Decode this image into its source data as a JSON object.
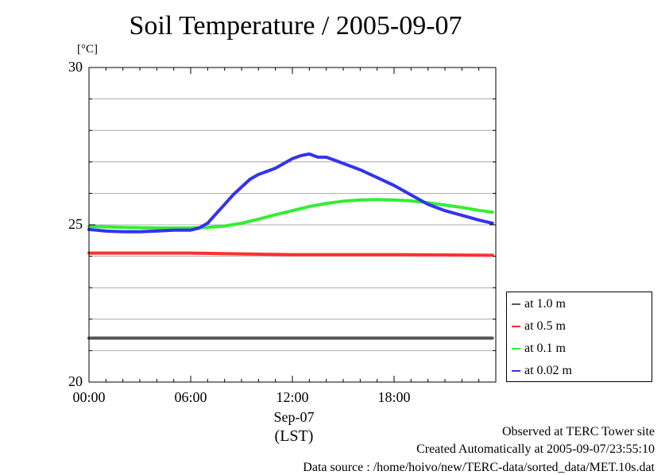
{
  "chart_data": {
    "type": "line",
    "title": "Soil Temperature / 2005-09-07",
    "ylabel": "[°C]",
    "ylim": [
      20,
      30
    ],
    "yticks": [
      20,
      25,
      30
    ],
    "xlim": [
      0,
      24
    ],
    "xticks": [
      0,
      6,
      12,
      18
    ],
    "xtick_labels": [
      "00:00",
      "06:00",
      "12:00",
      "18:00"
    ],
    "x_sublabel": "Sep-07",
    "x_unit": "(LST)",
    "grid": true,
    "legend_position": "right",
    "series": [
      {
        "name": "at 1.0 m",
        "color": "#555555",
        "x": [
          0,
          6,
          12,
          18,
          23.8
        ],
        "y": [
          21.4,
          21.4,
          21.4,
          21.4,
          21.4
        ]
      },
      {
        "name": "at 0.5 m",
        "color": "#ff3030",
        "x": [
          0,
          6,
          12,
          18,
          23.8
        ],
        "y": [
          24.1,
          24.1,
          24.05,
          24.05,
          24.03
        ]
      },
      {
        "name": "at 0.1 m",
        "color": "#33ee33",
        "x": [
          0,
          2,
          4,
          6,
          7,
          8,
          9,
          10,
          11,
          12,
          13,
          14,
          15,
          16,
          17,
          18,
          19,
          20,
          21,
          22,
          23,
          23.8
        ],
        "y": [
          24.95,
          24.92,
          24.9,
          24.9,
          24.92,
          24.96,
          25.05,
          25.18,
          25.32,
          25.45,
          25.58,
          25.68,
          25.75,
          25.79,
          25.8,
          25.79,
          25.76,
          25.7,
          25.63,
          25.55,
          25.46,
          25.4
        ]
      },
      {
        "name": "at 0.02 m",
        "color": "#3333ee",
        "x": [
          0,
          1,
          2,
          3,
          4,
          5,
          6,
          6.5,
          7,
          7.5,
          8,
          8.5,
          9,
          9.5,
          10,
          10.5,
          11,
          11.5,
          12,
          12.5,
          13,
          13.5,
          14,
          14.5,
          15,
          16,
          17,
          18,
          19,
          20,
          21,
          22,
          23,
          23.8
        ],
        "y": [
          24.85,
          24.8,
          24.78,
          24.78,
          24.8,
          24.83,
          24.83,
          24.9,
          25.05,
          25.35,
          25.65,
          25.95,
          26.2,
          26.45,
          26.6,
          26.7,
          26.8,
          26.95,
          27.1,
          27.2,
          27.25,
          27.15,
          27.15,
          27.05,
          26.95,
          26.75,
          26.5,
          26.25,
          25.95,
          25.65,
          25.45,
          25.3,
          25.15,
          25.05
        ]
      }
    ]
  },
  "footer": {
    "line1": "Observed at TERC Tower site",
    "line2": "Created Automatically at 2005-09-07/23:55:10",
    "line3": "Data source : /home/hoivo/new/TERC-data/sorted_data/MET.10s.dat"
  }
}
